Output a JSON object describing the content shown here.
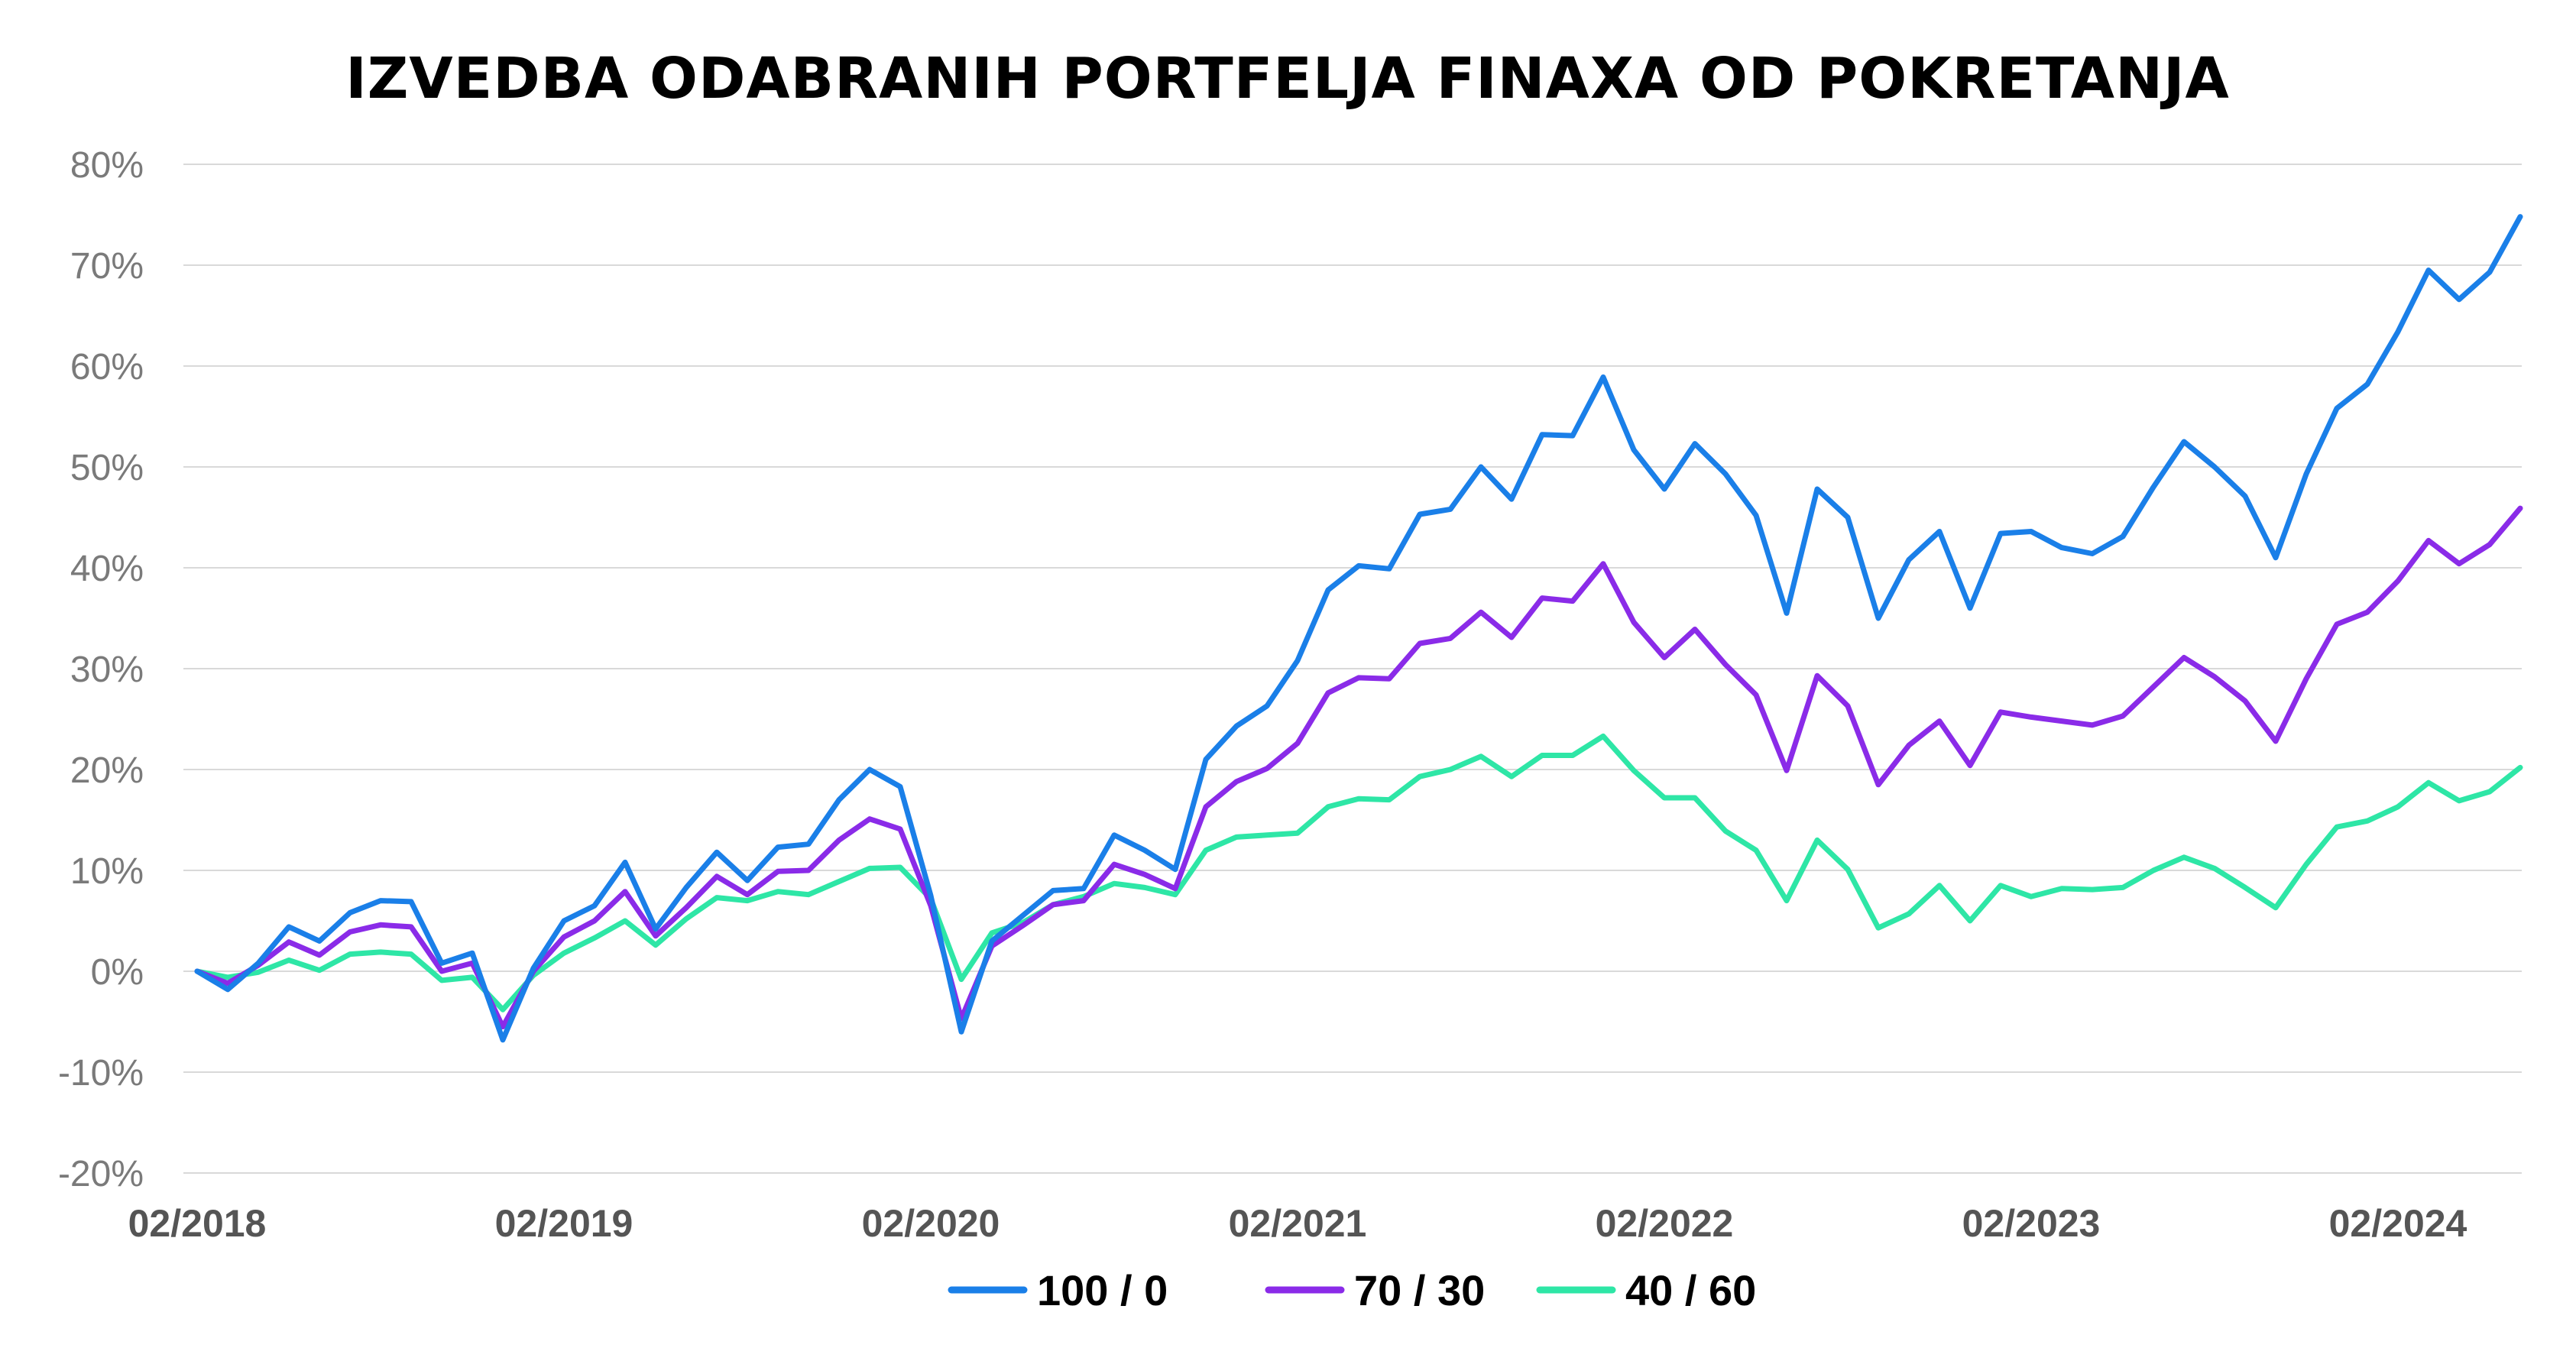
{
  "chart_data": {
    "type": "line",
    "title": "IZVEDBA ODABRANIH PORTFELJA FINAXA OD POKRETANJA",
    "xlabel": "",
    "ylabel": "",
    "ylim": [
      -20,
      80
    ],
    "y_ticks": [
      80,
      70,
      60,
      50,
      40,
      30,
      20,
      10,
      0,
      -10,
      -20
    ],
    "y_tick_labels": [
      "80%",
      "70%",
      "60%",
      "50%",
      "40%",
      "30%",
      "20%",
      "10%",
      "0%",
      "-10%",
      "-20%"
    ],
    "x_tick_labels": [
      "02/2018",
      "02/2019",
      "02/2020",
      "02/2021",
      "02/2022",
      "02/2023",
      "02/2024"
    ],
    "x_tick_indices": [
      0,
      12,
      24,
      36,
      48,
      60,
      72
    ],
    "x_start": "02/2018",
    "x_end": "06/2024",
    "x_step": "1 month",
    "grid": true,
    "legend_position": "bottom-center",
    "series": [
      {
        "name": "100 / 0",
        "color": "#1a7fe8",
        "values": [
          0,
          -1.8,
          0.8,
          4.4,
          3.0,
          5.8,
          7.0,
          6.9,
          0.8,
          1.8,
          -6.8,
          0.3,
          5.0,
          6.5,
          10.8,
          4.2,
          8.3,
          11.8,
          9.0,
          12.3,
          12.6,
          17.0,
          20.0,
          18.3,
          7.5,
          -6.0,
          3.0,
          5.5,
          8.0,
          8.2,
          13.5,
          12.0,
          10.1,
          21.0,
          24.3,
          26.3,
          30.8,
          37.8,
          40.2,
          39.9,
          45.3,
          45.8,
          50.0,
          46.8,
          53.2,
          53.1,
          58.9,
          51.7,
          47.8,
          52.3,
          49.3,
          45.2,
          35.5,
          47.8,
          45.0,
          35.0,
          40.8,
          43.6,
          36.0,
          43.4,
          43.6,
          42.0,
          41.4,
          43.1,
          48.0,
          52.5,
          50.0,
          47.1,
          41.0,
          49.3,
          55.8,
          58.2,
          63.4,
          69.5,
          66.6,
          69.3,
          74.8
        ]
      },
      {
        "name": "70 / 30",
        "color": "#8a2be8",
        "values": [
          0,
          -1.2,
          0.6,
          2.9,
          1.6,
          3.9,
          4.6,
          4.4,
          0.0,
          0.8,
          -5.5,
          0.0,
          3.4,
          5.0,
          7.9,
          3.5,
          6.3,
          9.4,
          7.6,
          9.9,
          10.0,
          13.0,
          15.1,
          14.1,
          6.5,
          -4.7,
          2.5,
          4.5,
          6.6,
          7.0,
          10.6,
          9.6,
          8.2,
          16.3,
          18.8,
          20.1,
          22.6,
          27.6,
          29.1,
          29.0,
          32.5,
          33.0,
          35.6,
          33.1,
          37.0,
          36.7,
          40.4,
          34.6,
          31.1,
          33.9,
          30.4,
          27.4,
          19.9,
          29.3,
          26.3,
          18.5,
          22.4,
          24.8,
          20.4,
          25.7,
          25.2,
          24.8,
          24.4,
          25.3,
          28.2,
          31.1,
          29.2,
          26.8,
          22.8,
          29.0,
          34.4,
          35.6,
          38.7,
          42.7,
          40.4,
          42.3,
          45.9
        ]
      },
      {
        "name": "40 / 60",
        "color": "#2ee6a6",
        "values": [
          0,
          -0.6,
          -0.1,
          1.1,
          0.1,
          1.7,
          1.9,
          1.7,
          -0.9,
          -0.6,
          -3.8,
          -0.4,
          1.8,
          3.3,
          5.0,
          2.6,
          5.2,
          7.3,
          7.0,
          7.9,
          7.6,
          8.9,
          10.2,
          10.3,
          7.2,
          -0.8,
          3.8,
          4.8,
          6.6,
          7.4,
          8.7,
          8.3,
          7.6,
          12.0,
          13.3,
          13.5,
          13.7,
          16.3,
          17.1,
          17.0,
          19.3,
          20.0,
          21.3,
          19.3,
          21.4,
          21.4,
          23.3,
          19.9,
          17.2,
          17.2,
          13.9,
          12.0,
          7.0,
          13.0,
          10.1,
          4.3,
          5.7,
          8.5,
          5.0,
          8.5,
          7.4,
          8.2,
          8.1,
          8.3,
          10.0,
          11.3,
          10.2,
          8.3,
          6.3,
          10.6,
          14.3,
          14.9,
          16.3,
          18.7,
          16.9,
          17.8,
          20.2
        ]
      }
    ]
  }
}
